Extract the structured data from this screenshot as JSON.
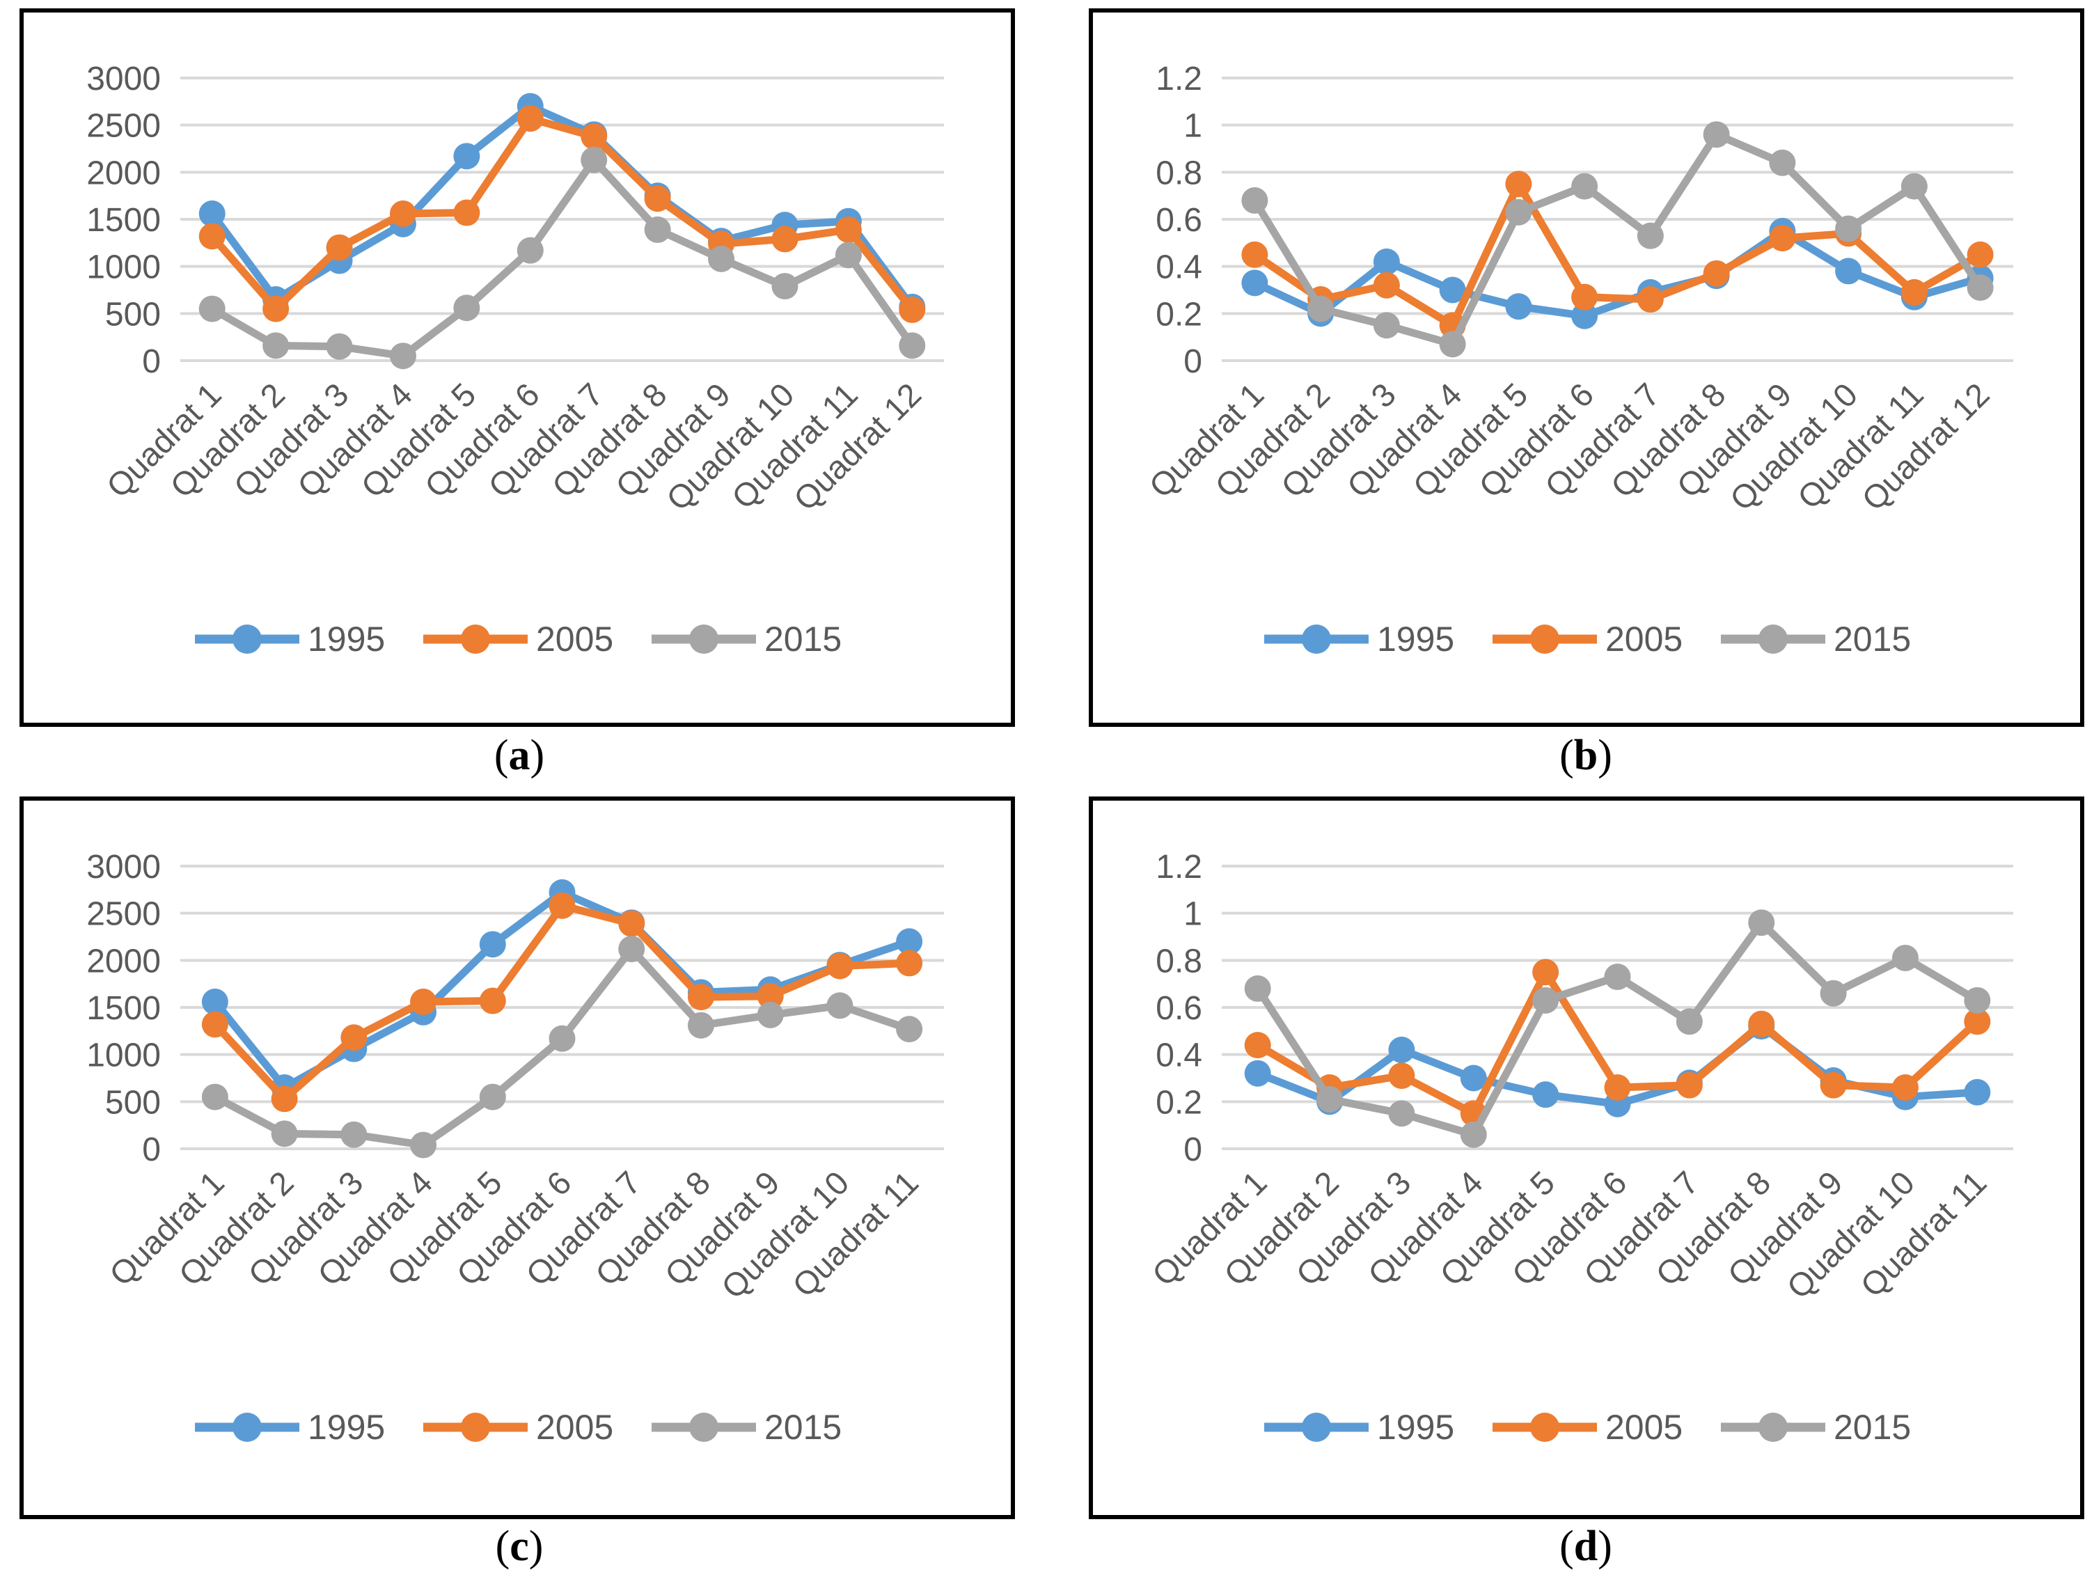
{
  "figure": {
    "background": "#ffffff",
    "panel_border_color": "#000000",
    "gridline_color": "#D9D9D9",
    "tick_text_color": "#595959",
    "legend_text_color": "#595959"
  },
  "captions": {
    "a": {
      "open": "(",
      "letter": "a",
      "close": ")"
    },
    "b": {
      "open": "(",
      "letter": "b",
      "close": ")"
    },
    "c": {
      "open": "(",
      "letter": "c",
      "close": ")"
    },
    "d": {
      "open": "(",
      "letter": "d",
      "close": ")"
    }
  },
  "chart_data": [
    {
      "id": "a",
      "type": "line",
      "position": "top-left",
      "title": "",
      "xlabel": "",
      "ylabel": "",
      "grid": true,
      "legend_position": "bottom",
      "ylim": [
        0,
        3000
      ],
      "y_tick_labels": [
        "3000",
        "2500",
        "2000",
        "1500",
        "1000",
        "500",
        "0"
      ],
      "categories": [
        "Quadrat 1",
        "Quadrat 2",
        "Quadrat 3",
        "Quadrat 4",
        "Quadrat 5",
        "Quadrat 6",
        "Quadrat 7",
        "Quadrat 8",
        "Quadrat 9",
        "Quadrat 10",
        "Quadrat 11",
        "Quadrat 12"
      ],
      "series": [
        {
          "name": "1995",
          "color": "#5B9BD5",
          "values": [
            1560,
            650,
            1060,
            1450,
            2170,
            2700,
            2400,
            1750,
            1270,
            1440,
            1480,
            570
          ]
        },
        {
          "name": "2005",
          "color": "#ED7D31",
          "values": [
            1320,
            550,
            1200,
            1560,
            1570,
            2570,
            2380,
            1720,
            1240,
            1290,
            1390,
            540
          ]
        },
        {
          "name": "2015",
          "color": "#A5A5A5",
          "values": [
            550,
            160,
            150,
            50,
            560,
            1170,
            2130,
            1390,
            1080,
            790,
            1120,
            160
          ]
        }
      ]
    },
    {
      "id": "b",
      "type": "line",
      "position": "top-right",
      "title": "",
      "xlabel": "",
      "ylabel": "",
      "grid": true,
      "legend_position": "bottom",
      "ylim": [
        0,
        1.2
      ],
      "y_tick_labels": [
        "1.2",
        "1",
        "0.8",
        "0.6",
        "0.4",
        "0.2",
        "0"
      ],
      "categories": [
        "Quadrat 1",
        "Quadrat 2",
        "Quadrat 3",
        "Quadrat 4",
        "Quadrat 5",
        "Quadrat 6",
        "Quadrat 7",
        "Quadrat 8",
        "Quadrat 9",
        "Quadrat 10",
        "Quadrat 11",
        "Quadrat 12"
      ],
      "series": [
        {
          "name": "1995",
          "color": "#5B9BD5",
          "values": [
            0.33,
            0.2,
            0.42,
            0.3,
            0.23,
            0.19,
            0.29,
            0.36,
            0.55,
            0.38,
            0.27,
            0.35
          ]
        },
        {
          "name": "2005",
          "color": "#ED7D31",
          "values": [
            0.45,
            0.26,
            0.32,
            0.15,
            0.75,
            0.27,
            0.26,
            0.37,
            0.52,
            0.54,
            0.29,
            0.45
          ]
        },
        {
          "name": "2015",
          "color": "#A5A5A5",
          "values": [
            0.68,
            0.22,
            0.15,
            0.07,
            0.63,
            0.74,
            0.53,
            0.96,
            0.84,
            0.56,
            0.74,
            0.31
          ]
        }
      ]
    },
    {
      "id": "c",
      "type": "line",
      "position": "bottom-left",
      "title": "",
      "xlabel": "",
      "ylabel": "",
      "grid": true,
      "legend_position": "bottom",
      "ylim": [
        0,
        3000
      ],
      "y_tick_labels": [
        "3000",
        "2500",
        "2000",
        "1500",
        "1000",
        "500",
        "0"
      ],
      "categories": [
        "Quadrat 1",
        "Quadrat 2",
        "Quadrat 3",
        "Quadrat 4",
        "Quadrat 5",
        "Quadrat 6",
        "Quadrat 7",
        "Quadrat 8",
        "Quadrat 9",
        "Quadrat 10",
        "Quadrat 11"
      ],
      "series": [
        {
          "name": "1995",
          "color": "#5B9BD5",
          "values": [
            1560,
            650,
            1060,
            1450,
            2170,
            2720,
            2400,
            1660,
            1690,
            1950,
            2200
          ]
        },
        {
          "name": "2005",
          "color": "#ED7D31",
          "values": [
            1320,
            530,
            1180,
            1560,
            1570,
            2580,
            2390,
            1610,
            1620,
            1940,
            1970
          ]
        },
        {
          "name": "2015",
          "color": "#A5A5A5",
          "values": [
            550,
            160,
            150,
            40,
            550,
            1170,
            2120,
            1310,
            1420,
            1520,
            1270
          ]
        }
      ]
    },
    {
      "id": "d",
      "type": "line",
      "position": "bottom-right",
      "title": "",
      "xlabel": "",
      "ylabel": "",
      "grid": true,
      "legend_position": "bottom",
      "ylim": [
        0,
        1.2
      ],
      "y_tick_labels": [
        "1.2",
        "1",
        "0.8",
        "0.6",
        "0.4",
        "0.2",
        "0"
      ],
      "categories": [
        "Quadrat 1",
        "Quadrat 2",
        "Quadrat 3",
        "Quadrat 4",
        "Quadrat 5",
        "Quadrat 6",
        "Quadrat 7",
        "Quadrat 8",
        "Quadrat 9",
        "Quadrat 10",
        "Quadrat 11"
      ],
      "series": [
        {
          "name": "1995",
          "color": "#5B9BD5",
          "values": [
            0.32,
            0.2,
            0.42,
            0.3,
            0.23,
            0.19,
            0.28,
            0.52,
            0.29,
            0.22,
            0.24
          ]
        },
        {
          "name": "2005",
          "color": "#ED7D31",
          "values": [
            0.44,
            0.26,
            0.31,
            0.15,
            0.75,
            0.26,
            0.27,
            0.53,
            0.27,
            0.26,
            0.54
          ]
        },
        {
          "name": "2015",
          "color": "#A5A5A5",
          "values": [
            0.68,
            0.21,
            0.15,
            0.06,
            0.63,
            0.73,
            0.54,
            0.96,
            0.66,
            0.81,
            0.63
          ]
        }
      ]
    }
  ]
}
